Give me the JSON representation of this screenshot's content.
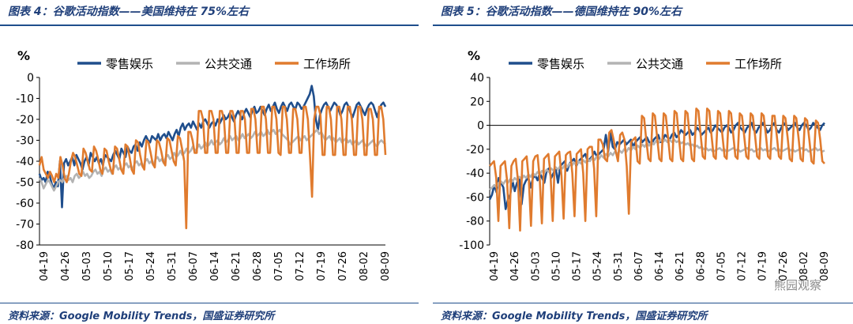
{
  "chart_data": [
    {
      "type": "line",
      "title": "图表 4：谷歌活动指数——美国维持在 75%左右",
      "source": "资料来源：Google Mobility Trends，国盛证券研究所",
      "ylabel": "%",
      "ylim": [
        -80,
        0
      ],
      "yticks": [
        0,
        -10,
        -20,
        -30,
        -40,
        -50,
        -60,
        -70,
        -80
      ],
      "x_tick_labels": [
        "04-19",
        "04-26",
        "05-03",
        "05-10",
        "05-17",
        "05-24",
        "05-31",
        "06-07",
        "06-14",
        "06-21",
        "06-28",
        "07-05",
        "07-12",
        "07-19",
        "07-26",
        "08-02",
        "08-09"
      ],
      "legend_position": "top",
      "series": [
        {
          "name": "零售娱乐",
          "color": "#1f4e8c",
          "values": [
            -46,
            -49,
            -48,
            -50,
            -45,
            -47,
            -51,
            -53,
            -50,
            -52,
            -40,
            -62,
            -41,
            -39,
            -42,
            -40,
            -38,
            -42,
            -37,
            -39,
            -41,
            -44,
            -40,
            -38,
            -42,
            -36,
            -38,
            -40,
            -38,
            -41,
            -39,
            -42,
            -37,
            -38,
            -39,
            -40,
            -37,
            -35,
            -37,
            -39,
            -34,
            -36,
            -38,
            -33,
            -35,
            -36,
            -33,
            -32,
            -35,
            -31,
            -33,
            -30,
            -28,
            -30,
            -31,
            -28,
            -29,
            -30,
            -27,
            -30,
            -28,
            -27,
            -29,
            -26,
            -28,
            -30,
            -27,
            -25,
            -28,
            -24,
            -22,
            -25,
            -23,
            -22,
            -24,
            -21,
            -23,
            -25,
            -22,
            -24,
            -21,
            -20,
            -22,
            -24,
            -22,
            -21,
            -23,
            -20,
            -22,
            -20,
            -18,
            -20,
            -19,
            -17,
            -19,
            -21,
            -18,
            -16,
            -18,
            -20,
            -17,
            -15,
            -17,
            -19,
            -16,
            -14,
            -17,
            -16,
            -14,
            -16,
            -18,
            -15,
            -13,
            -16,
            -14,
            -12,
            -15,
            -17,
            -14,
            -12,
            -14,
            -16,
            -13,
            -12,
            -14,
            -15,
            -12,
            -13,
            -15,
            -14,
            -12,
            -10,
            -8,
            -4,
            -9,
            -20,
            -25,
            -18,
            -15,
            -13,
            -12,
            -14,
            -16,
            -14,
            -12,
            -13,
            -15,
            -18,
            -16,
            -13,
            -12,
            -14,
            -17,
            -19,
            -16,
            -13,
            -12,
            -14,
            -16,
            -18,
            -15,
            -13,
            -12,
            -13,
            -16,
            -19,
            -15,
            -13,
            -12,
            -14
          ]
        },
        {
          "name": "公共交通",
          "color": "#b3b3b3",
          "values": [
            -48,
            -50,
            -53,
            -51,
            -49,
            -50,
            -52,
            -54,
            -52,
            -50,
            -49,
            -50,
            -48,
            -47,
            -49,
            -48,
            -50,
            -47,
            -46,
            -48,
            -47,
            -45,
            -47,
            -46,
            -48,
            -47,
            -45,
            -44,
            -46,
            -45,
            -47,
            -44,
            -43,
            -45,
            -44,
            -46,
            -43,
            -42,
            -44,
            -43,
            -45,
            -42,
            -41,
            -43,
            -42,
            -44,
            -41,
            -40,
            -42,
            -41,
            -43,
            -40,
            -39,
            -41,
            -40,
            -42,
            -39,
            -38,
            -40,
            -39,
            -41,
            -38,
            -37,
            -39,
            -38,
            -36,
            -38,
            -37,
            -35,
            -37,
            -36,
            -34,
            -36,
            -35,
            -33,
            -35,
            -34,
            -32,
            -34,
            -33,
            -31,
            -33,
            -32,
            -30,
            -32,
            -31,
            -30,
            -32,
            -31,
            -29,
            -31,
            -30,
            -28,
            -30,
            -29,
            -28,
            -30,
            -29,
            -27,
            -29,
            -28,
            -27,
            -29,
            -28,
            -26,
            -28,
            -27,
            -26,
            -28,
            -27,
            -25,
            -27,
            -26,
            -25,
            -27,
            -26,
            -25,
            -27,
            -28,
            -29,
            -30,
            -32,
            -31,
            -30,
            -29,
            -28,
            -30,
            -29,
            -28,
            -30,
            -29,
            -28,
            -27,
            -26,
            -25,
            -27,
            -26,
            -28,
            -30,
            -29,
            -28,
            -30,
            -29,
            -31,
            -30,
            -29,
            -31,
            -30,
            -29,
            -31,
            -30,
            -32,
            -31,
            -30,
            -32,
            -31,
            -30,
            -32,
            -33,
            -32,
            -31,
            -30,
            -32,
            -33,
            -31,
            -30,
            -31,
            -32
          ]
        },
        {
          "name": "工作场所",
          "color": "#e07b2e",
          "values": [
            -42,
            -38,
            -44,
            -46,
            -48,
            -45,
            -47,
            -50,
            -46,
            -48,
            -38,
            -42,
            -48,
            -50,
            -46,
            -40,
            -36,
            -38,
            -42,
            -46,
            -47,
            -34,
            -36,
            -40,
            -44,
            -45,
            -33,
            -35,
            -39,
            -44,
            -46,
            -34,
            -35,
            -40,
            -44,
            -46,
            -33,
            -34,
            -39,
            -44,
            -46,
            -32,
            -33,
            -38,
            -44,
            -46,
            -30,
            -31,
            -37,
            -42,
            -44,
            -30,
            -31,
            -36,
            -41,
            -43,
            -30,
            -31,
            -35,
            -40,
            -42,
            -29,
            -30,
            -35,
            -40,
            -42,
            -28,
            -29,
            -34,
            -40,
            -72,
            -26,
            -26,
            -30,
            -36,
            -36,
            -16,
            -16,
            -20,
            -36,
            -36,
            -16,
            -16,
            -20,
            -36,
            -36,
            -16,
            -16,
            -20,
            -36,
            -36,
            -16,
            -16,
            -20,
            -36,
            -36,
            -16,
            -16,
            -20,
            -36,
            -36,
            -15,
            -15,
            -20,
            -36,
            -36,
            -14,
            -14,
            -20,
            -36,
            -36,
            -14,
            -14,
            -20,
            -36,
            -37,
            -14,
            -14,
            -20,
            -36,
            -36,
            -15,
            -15,
            -20,
            -36,
            -36,
            -14,
            -14,
            -20,
            -37,
            -57,
            -20,
            -14,
            -14,
            -18,
            -37,
            -37,
            -14,
            -14,
            -20,
            -37,
            -37,
            -14,
            -14,
            -20,
            -37,
            -37,
            -14,
            -14,
            -20,
            -37,
            -37,
            -14,
            -14,
            -20,
            -37,
            -37,
            -15,
            -15,
            -20,
            -37,
            -37,
            -14,
            -14,
            -20,
            -37
          ]
        }
      ]
    },
    {
      "type": "line",
      "title": "图表 5：谷歌活动指数——德国维持在 90%左右",
      "source": "资料来源：Google Mobility Trends，国盛证券研究所",
      "ylabel": "%",
      "ylim": [
        -100,
        40
      ],
      "yticks": [
        40,
        20,
        0,
        -20,
        -40,
        -60,
        -80,
        -100
      ],
      "x_tick_labels": [
        "04-19",
        "04-26",
        "05-03",
        "05-10",
        "05-17",
        "05-24",
        "05-31",
        "06-07",
        "06-14",
        "06-21",
        "06-28",
        "07-05",
        "07-12",
        "07-19",
        "07-26",
        "08-02",
        "08-09"
      ],
      "legend_position": "top",
      "watermark": "熊园观察",
      "series": [
        {
          "name": "零售娱乐",
          "color": "#1f4e8c",
          "values": [
            -62,
            -58,
            -50,
            -56,
            -44,
            -48,
            -52,
            -70,
            -62,
            -58,
            -46,
            -55,
            -48,
            -44,
            -66,
            -50,
            -46,
            -44,
            -52,
            -44,
            -42,
            -46,
            -40,
            -44,
            -48,
            -38,
            -36,
            -44,
            -40,
            -36,
            -48,
            -34,
            -32,
            -30,
            -38,
            -32,
            -30,
            -28,
            -34,
            -30,
            -28,
            -26,
            -24,
            -30,
            -28,
            -26,
            -22,
            -26,
            -24,
            -22,
            -20,
            -8,
            -22,
            -6,
            -18,
            -20,
            -14,
            -16,
            -14,
            -12,
            -16,
            -14,
            -12,
            -18,
            -14,
            -12,
            -10,
            -14,
            -12,
            -10,
            -14,
            -16,
            -12,
            -10,
            -8,
            -14,
            -12,
            -8,
            -10,
            -12,
            -8,
            -6,
            -10,
            -8,
            -4,
            -6,
            -8,
            -6,
            -4,
            -8,
            -6,
            -2,
            -4,
            -8,
            -6,
            -4,
            -2,
            -6,
            -4,
            0,
            -2,
            -4,
            -6,
            -2,
            0,
            -2,
            -6,
            -4,
            0,
            2,
            -2,
            -4,
            -6,
            -2,
            0,
            2,
            -4,
            -6,
            -2,
            0,
            2,
            -2,
            -6,
            -4,
            0,
            2,
            -4,
            -6,
            -2,
            2,
            0,
            -4,
            -2,
            0,
            2,
            -2,
            -4,
            0,
            2,
            0,
            -4,
            -2,
            2,
            0,
            -2,
            -4,
            0,
            2
          ]
        },
        {
          "name": "公共交通",
          "color": "#b3b3b3",
          "values": [
            -54,
            -52,
            -50,
            -52,
            -48,
            -47,
            -49,
            -46,
            -48,
            -45,
            -47,
            -44,
            -46,
            -43,
            -45,
            -42,
            -44,
            -41,
            -43,
            -40,
            -42,
            -39,
            -41,
            -38,
            -40,
            -37,
            -39,
            -36,
            -38,
            -35,
            -37,
            -34,
            -36,
            -33,
            -35,
            -32,
            -34,
            -31,
            -33,
            -30,
            -32,
            -29,
            -31,
            -28,
            -30,
            -27,
            -29,
            -26,
            -28,
            -25,
            -27,
            -24,
            -26,
            -23,
            -25,
            -22,
            -24,
            -21,
            -23,
            -20,
            -22,
            -19,
            -21,
            -18,
            -20,
            -17,
            -19,
            -16,
            -18,
            -15,
            -17,
            -14,
            -16,
            -13,
            -15,
            -12,
            -14,
            -12,
            -14,
            -12,
            -14,
            -12,
            -14,
            -13,
            -15,
            -14,
            -16,
            -15,
            -17,
            -16,
            -18,
            -17,
            -19,
            -18,
            -20,
            -19,
            -21,
            -20,
            -22,
            -21,
            -20,
            -19,
            -21,
            -20,
            -22,
            -21,
            -20,
            -19,
            -21,
            -20,
            -22,
            -21,
            -20,
            -19,
            -21,
            -20,
            -22,
            -21,
            -20,
            -19,
            -21,
            -20,
            -22,
            -21,
            -20,
            -19,
            -21,
            -20,
            -22,
            -21,
            -20,
            -19,
            -21,
            -20,
            -22,
            -21,
            -20,
            -19,
            -21,
            -20,
            -22,
            -21,
            -20,
            -19,
            -21,
            -20,
            -22,
            -21
          ]
        },
        {
          "name": "工作场所",
          "color": "#e07b2e",
          "values": [
            -34,
            -32,
            -30,
            -44,
            -80,
            -34,
            -32,
            -30,
            -46,
            -86,
            -34,
            -30,
            -28,
            -46,
            -88,
            -30,
            -28,
            -26,
            -46,
            -84,
            -30,
            -26,
            -25,
            -44,
            -82,
            -28,
            -26,
            -24,
            -42,
            -80,
            -26,
            -24,
            -22,
            -42,
            -78,
            -25,
            -23,
            -22,
            -40,
            -76,
            -24,
            -22,
            -20,
            -40,
            -80,
            -20,
            -18,
            -18,
            -36,
            -76,
            -12,
            -12,
            -16,
            -28,
            -30,
            -6,
            -4,
            -12,
            -22,
            -30,
            -8,
            -6,
            -12,
            -34,
            -74,
            -14,
            -12,
            -10,
            -30,
            -32,
            8,
            6,
            -12,
            -28,
            -30,
            10,
            8,
            -10,
            -28,
            -30,
            10,
            8,
            -10,
            -28,
            -30,
            12,
            10,
            -10,
            -28,
            -30,
            12,
            10,
            -10,
            -28,
            -30,
            14,
            12,
            -8,
            -26,
            -28,
            14,
            12,
            -8,
            -26,
            -28,
            12,
            10,
            -8,
            -26,
            -28,
            12,
            10,
            -8,
            -26,
            -28,
            10,
            8,
            -8,
            -26,
            -28,
            10,
            8,
            -8,
            -26,
            -28,
            10,
            8,
            -8,
            -26,
            -28,
            8,
            8,
            -8,
            -26,
            -28,
            8,
            6,
            -10,
            -28,
            -30,
            8,
            6,
            -10,
            -28,
            -30,
            6,
            4,
            -12,
            -30,
            -32,
            4,
            2,
            -12,
            -30,
            -32
          ]
        }
      ]
    }
  ]
}
